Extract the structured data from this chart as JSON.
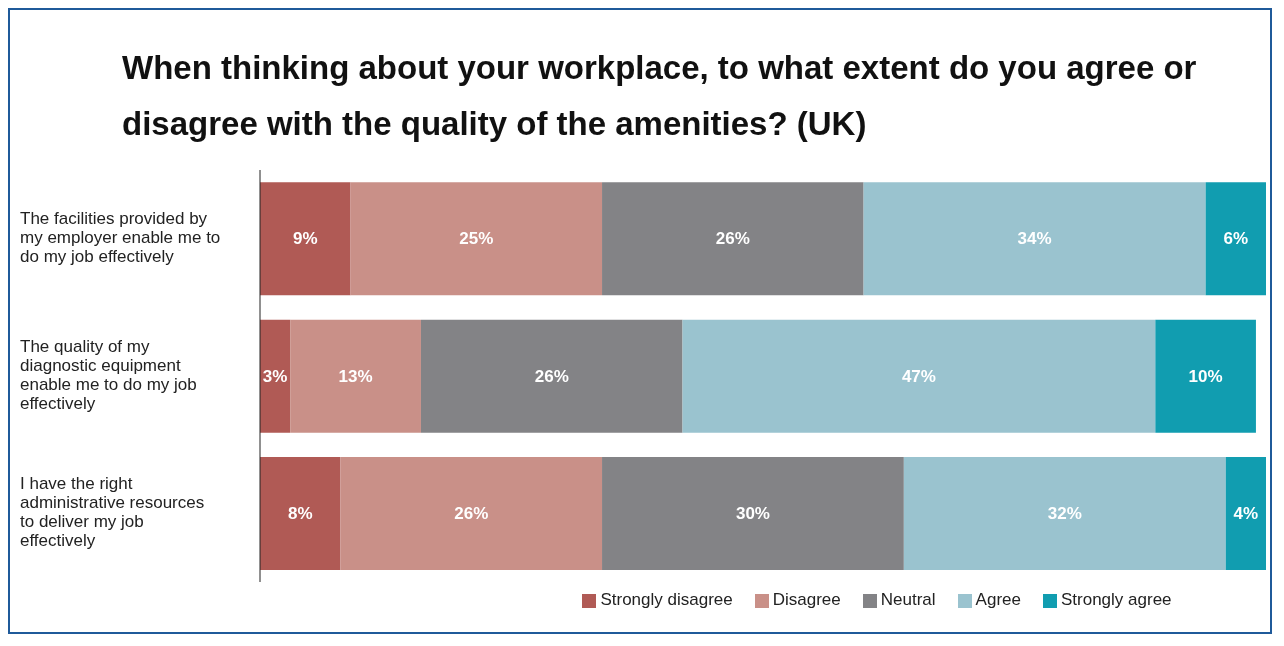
{
  "chart_data": {
    "type": "bar",
    "orientation": "horizontal",
    "stacked": true,
    "title": "When thinking about your workplace, to what extent do you agree or disagree with the quality of the amenities? (UK)",
    "categories": [
      "The facilities provided by my employer enable me to do my job effectively",
      "The quality of my diagnostic equipment enable me to do my job effectively",
      "I have the right administrative resources to deliver my job effectively"
    ],
    "series": [
      {
        "name": "Strongly disagree",
        "color": "#b05a55",
        "values": [
          9,
          3,
          8
        ],
        "value_labels": [
          "9%",
          "3%",
          "8%"
        ]
      },
      {
        "name": "Disagree",
        "color": "#c99088",
        "values": [
          25,
          13,
          26
        ],
        "value_labels": [
          "25%",
          "13%",
          "26%"
        ]
      },
      {
        "name": "Neutral",
        "color": "#838386",
        "values": [
          26,
          26,
          30
        ],
        "value_labels": [
          "26%",
          "26%",
          "30%"
        ]
      },
      {
        "name": "Agree",
        "color": "#9ac3cf",
        "values": [
          34,
          47,
          32
        ],
        "value_labels": [
          "34%",
          "47%",
          "32%"
        ]
      },
      {
        "name": "Strongly agree",
        "color": "#119db0",
        "values": [
          6,
          10,
          4
        ],
        "value_labels": [
          "6%",
          "10%",
          "4%"
        ]
      }
    ],
    "xlim": [
      0,
      100
    ],
    "tick_labels": "y",
    "grid": false,
    "legend": "bottom"
  }
}
